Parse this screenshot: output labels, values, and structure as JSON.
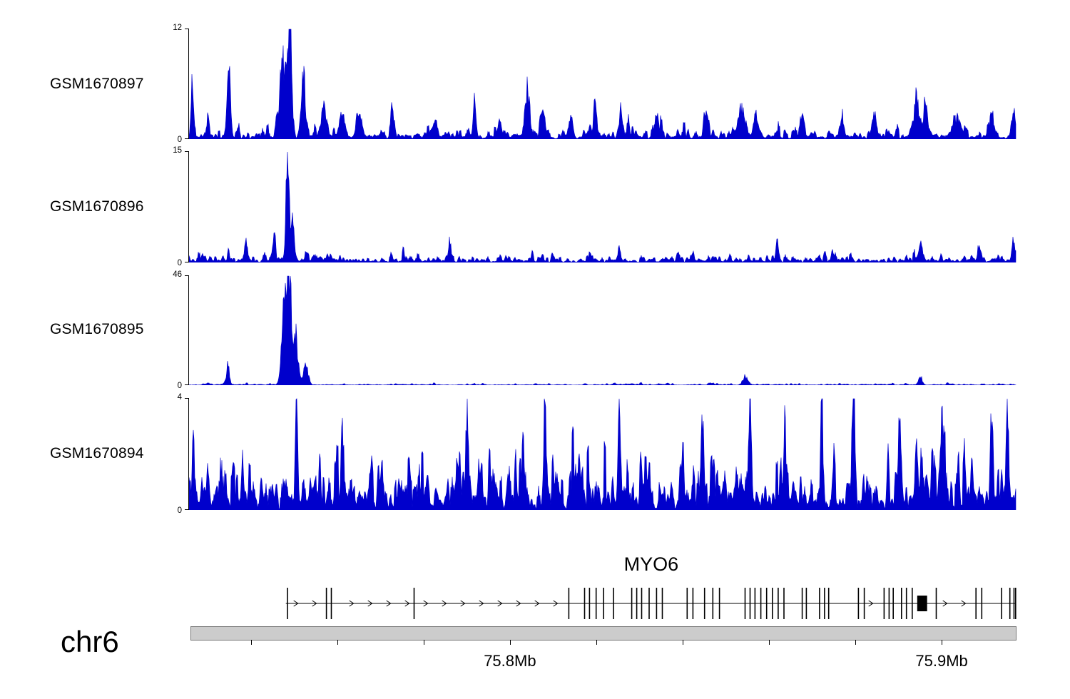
{
  "chart_data": {
    "type": "area",
    "description": "Genome browser coverage tracks (read pile-up signal) over the MYO6 locus on chr6",
    "signal_color": "#0000cc",
    "x_axis": {
      "chromosome": "chr6",
      "unit": "Mb",
      "range_mb": [
        75.726,
        75.917
      ],
      "tick_interval_mb": 0.02,
      "labeled_ticks": [
        {
          "text": "75.8Mb",
          "mb": 75.8
        },
        {
          "text": "75.9Mb",
          "mb": 75.9
        }
      ]
    },
    "tracks": [
      {
        "name": "GSM1670897",
        "ylim": [
          0,
          12
        ],
        "seed": 897,
        "noise": {
          "mean": 0.5
        },
        "peaks": [
          {
            "x": 0.004,
            "h": 5.5,
            "w": 0.0015
          },
          {
            "x": 0.023,
            "h": 2.6,
            "w": 0.0015
          },
          {
            "x": 0.048,
            "h": 7.5,
            "w": 0.0018
          },
          {
            "x": 0.114,
            "h": 8,
            "w": 0.004
          },
          {
            "x": 0.122,
            "h": 12,
            "w": 0.0022
          },
          {
            "x": 0.138,
            "h": 6,
            "w": 0.0025
          },
          {
            "x": 0.163,
            "h": 3,
            "w": 0.003
          },
          {
            "x": 0.186,
            "h": 2.6,
            "w": 0.003
          },
          {
            "x": 0.205,
            "h": 2.2,
            "w": 0.003
          },
          {
            "x": 0.246,
            "h": 3,
            "w": 0.002
          },
          {
            "x": 0.297,
            "h": 2.1,
            "w": 0.0025
          },
          {
            "x": 0.345,
            "h": 3.6,
            "w": 0.0018
          },
          {
            "x": 0.375,
            "h": 2.2,
            "w": 0.002
          },
          {
            "x": 0.409,
            "h": 5,
            "w": 0.0028
          },
          {
            "x": 0.427,
            "h": 3,
            "w": 0.002
          },
          {
            "x": 0.461,
            "h": 2.2,
            "w": 0.0025
          },
          {
            "x": 0.491,
            "h": 3.7,
            "w": 0.0018
          },
          {
            "x": 0.522,
            "h": 2.6,
            "w": 0.002
          },
          {
            "x": 0.565,
            "h": 2.2,
            "w": 0.0025
          },
          {
            "x": 0.625,
            "h": 2.4,
            "w": 0.0025
          },
          {
            "x": 0.668,
            "h": 3.2,
            "w": 0.0035
          },
          {
            "x": 0.685,
            "h": 2.6,
            "w": 0.0025
          },
          {
            "x": 0.741,
            "h": 2.8,
            "w": 0.0025
          },
          {
            "x": 0.789,
            "h": 2.3,
            "w": 0.0025
          },
          {
            "x": 0.828,
            "h": 2.9,
            "w": 0.0025
          },
          {
            "x": 0.879,
            "h": 4.6,
            "w": 0.0028
          },
          {
            "x": 0.89,
            "h": 3.6,
            "w": 0.002
          },
          {
            "x": 0.93,
            "h": 1.4,
            "w": 0.006
          },
          {
            "x": 0.97,
            "h": 2.6,
            "w": 0.0025
          },
          {
            "x": 0.996,
            "h": 2.8,
            "w": 0.002
          }
        ]
      },
      {
        "name": "GSM1670896",
        "ylim": [
          0,
          15
        ],
        "seed": 896,
        "noise": {
          "mean": 0.48
        },
        "peaks": [
          {
            "x": 0.069,
            "h": 2.4,
            "w": 0.0018
          },
          {
            "x": 0.103,
            "h": 4,
            "w": 0.0015
          },
          {
            "x": 0.119,
            "h": 15,
            "w": 0.0018
          },
          {
            "x": 0.125,
            "h": 5,
            "w": 0.002
          },
          {
            "x": 0.315,
            "h": 2.8,
            "w": 0.0015
          },
          {
            "x": 0.52,
            "h": 2.2,
            "w": 0.0015
          },
          {
            "x": 0.711,
            "h": 2.7,
            "w": 0.0015
          },
          {
            "x": 0.884,
            "h": 2.2,
            "w": 0.0018
          },
          {
            "x": 0.955,
            "h": 2.3,
            "w": 0.0018
          },
          {
            "x": 0.996,
            "h": 2.6,
            "w": 0.0018
          }
        ]
      },
      {
        "name": "GSM1670895",
        "ylim": [
          0,
          46
        ],
        "seed": 895,
        "noise": {
          "mean": 0.3
        },
        "peaks": [
          {
            "x": 0.047,
            "h": 8,
            "w": 0.0018
          },
          {
            "x": 0.115,
            "h": 30,
            "w": 0.003
          },
          {
            "x": 0.121,
            "h": 46,
            "w": 0.0025
          },
          {
            "x": 0.129,
            "h": 20,
            "w": 0.0028
          },
          {
            "x": 0.141,
            "h": 8,
            "w": 0.0028
          },
          {
            "x": 0.672,
            "h": 3.5,
            "w": 0.003
          },
          {
            "x": 0.884,
            "h": 3.5,
            "w": 0.002
          }
        ]
      },
      {
        "name": "GSM1670894",
        "ylim": [
          0,
          4
        ],
        "seed": 894,
        "noise": {
          "mean": 0.85
        },
        "peaks": [
          {
            "x": 0.13,
            "h": 2.6,
            "w": 0.0015
          },
          {
            "x": 0.185,
            "h": 2.7,
            "w": 0.0015
          },
          {
            "x": 0.336,
            "h": 3.3,
            "w": 0.0015
          },
          {
            "x": 0.43,
            "h": 2.7,
            "w": 0.0015
          },
          {
            "x": 0.52,
            "h": 2.6,
            "w": 0.0015
          },
          {
            "x": 0.62,
            "h": 2.8,
            "w": 0.0015
          },
          {
            "x": 0.678,
            "h": 3.9,
            "w": 0.0015
          },
          {
            "x": 0.72,
            "h": 2.7,
            "w": 0.0015
          },
          {
            "x": 0.765,
            "h": 2.7,
            "w": 0.0015
          },
          {
            "x": 0.803,
            "h": 2.8,
            "w": 0.0015
          },
          {
            "x": 0.859,
            "h": 3.1,
            "w": 0.0015
          },
          {
            "x": 0.91,
            "h": 2.6,
            "w": 0.0015
          },
          {
            "x": 0.97,
            "h": 2.9,
            "w": 0.0015
          },
          {
            "x": 0.989,
            "h": 3.4,
            "w": 0.0015
          }
        ]
      }
    ],
    "gene_track": {
      "name": "MYO6",
      "strand": "right",
      "start_frac": 0.117,
      "end_frac": 1.0,
      "exon_fracs": [
        0.119,
        0.166,
        0.172,
        0.272,
        0.459,
        0.478,
        0.484,
        0.492,
        0.501,
        0.513,
        0.535,
        0.541,
        0.547,
        0.556,
        0.565,
        0.572,
        0.602,
        0.609,
        0.623,
        0.633,
        0.641,
        0.672,
        0.678,
        0.684,
        0.691,
        0.698,
        0.705,
        0.712,
        0.719,
        0.741,
        0.746,
        0.762,
        0.768,
        0.773,
        0.809,
        0.816,
        0.84,
        0.846,
        0.851,
        0.861,
        0.867,
        0.874,
        0.903,
        0.951,
        0.958,
        0.982,
        0.992,
        0.997,
        0.999
      ],
      "thick_exon": {
        "frac": 0.886,
        "width_frac": 0.012
      }
    }
  }
}
